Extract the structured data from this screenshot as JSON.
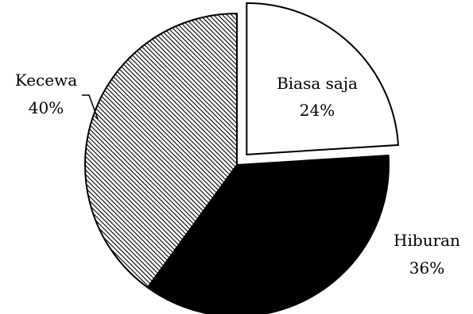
{
  "chart_data": {
    "type": "pie",
    "title": "",
    "categories": [
      "Biasa saja",
      "Hiburan",
      "Kecewa"
    ],
    "values": [
      24,
      36,
      40
    ],
    "value_labels": [
      "24%",
      "36%",
      "40%"
    ],
    "unit": "%",
    "exploded": [
      "Biasa saja"
    ],
    "fills": {
      "Biasa saja": "white",
      "Hiburan": "solid-black",
      "Kecewa": "diagonal-hatch"
    },
    "legend": "none",
    "label_placement": {
      "Biasa saja": "inside",
      "Hiburan": "outside-right",
      "Kecewa": "outside-left-with-leader"
    }
  },
  "colors": {
    "outline": "#000000",
    "biasa_saja": "#ffffff",
    "hiburan": "#000000",
    "kecewa_hatch": "#000000",
    "background": "#ffffff"
  }
}
